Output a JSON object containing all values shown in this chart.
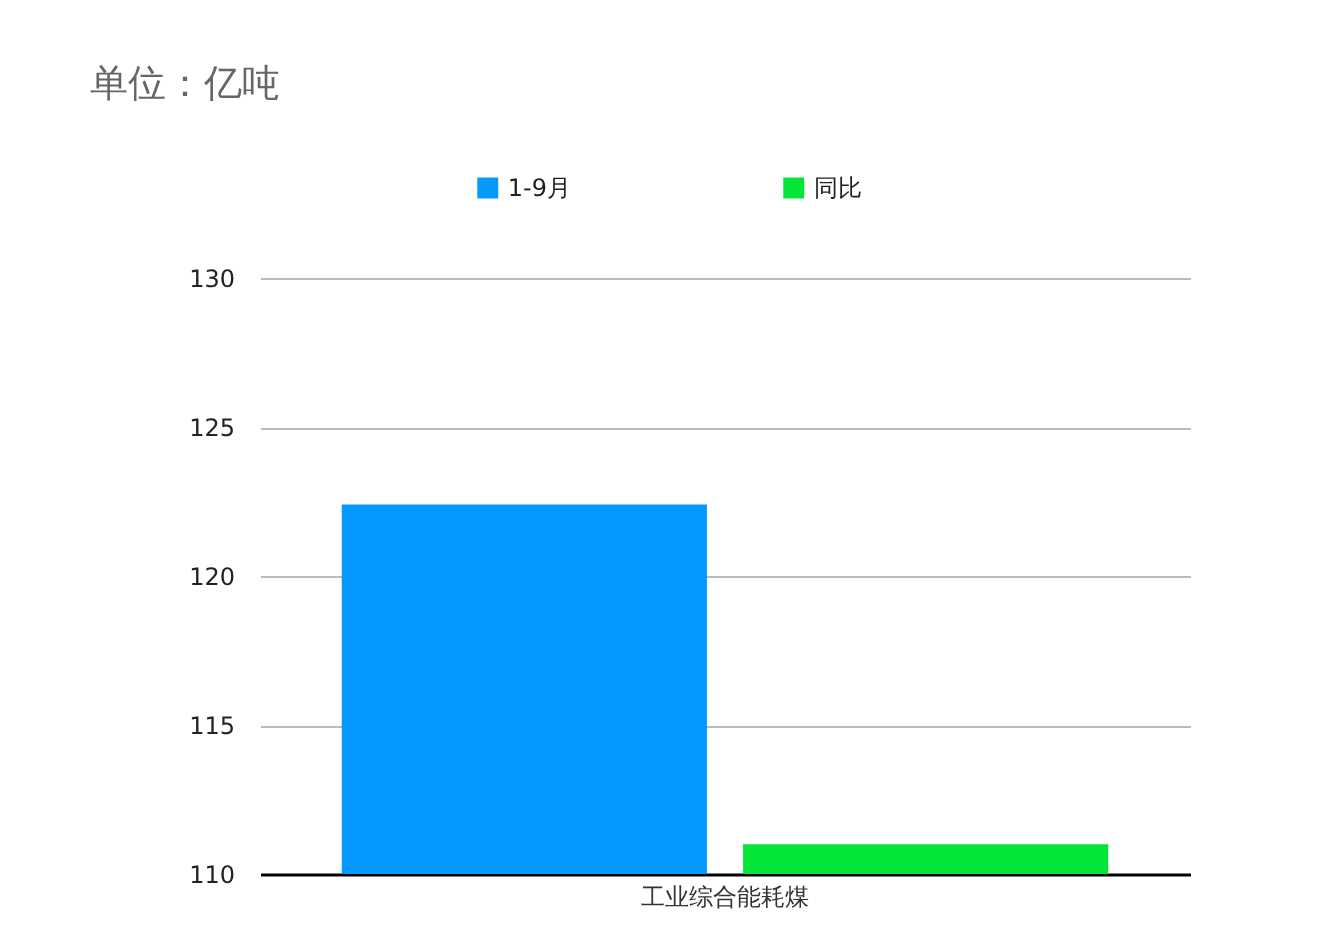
{
  "chart_data": {
    "type": "bar",
    "title": "单位：亿吨",
    "categories": [
      "工业综合能耗煤"
    ],
    "series": [
      {
        "name": "1-9月",
        "color": "#0399fe",
        "values": [
          122.4
        ]
      },
      {
        "name": "同比",
        "color": "#03e638",
        "values": [
          111
        ]
      }
    ],
    "ylim": [
      110,
      130
    ],
    "yticks": [
      110,
      115,
      120,
      125,
      130
    ],
    "grid": "y",
    "legend": "top"
  }
}
